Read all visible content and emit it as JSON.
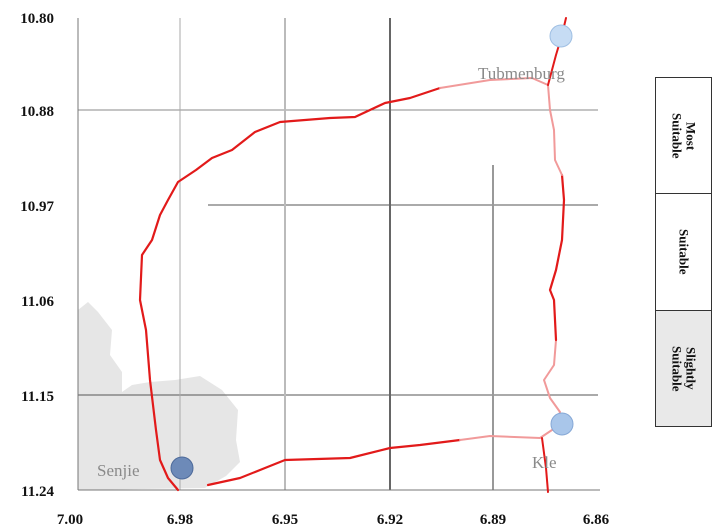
{
  "y_ticks": [
    "10.80",
    "10.88",
    "10.97",
    "11.06",
    "11.15",
    "11.24"
  ],
  "x_ticks": [
    "7.00",
    "6.98",
    "6.95",
    "6.92",
    "6.89",
    "6.86"
  ],
  "towns": [
    {
      "name": "Tubmenburg",
      "color": "#c6dcf4"
    },
    {
      "name": "Kle",
      "color": "#a9c6ea"
    },
    {
      "name": "Senjie",
      "color": "#6d8ab8"
    }
  ],
  "legend": {
    "items": [
      "Most\nSuitable",
      "Suitable",
      "Slightly\nSuitable"
    ]
  },
  "colors": {
    "route_dark": "#e21a1a",
    "route_light": "#f19a9a",
    "land": "#e6e6e6",
    "grid": "#999999"
  }
}
